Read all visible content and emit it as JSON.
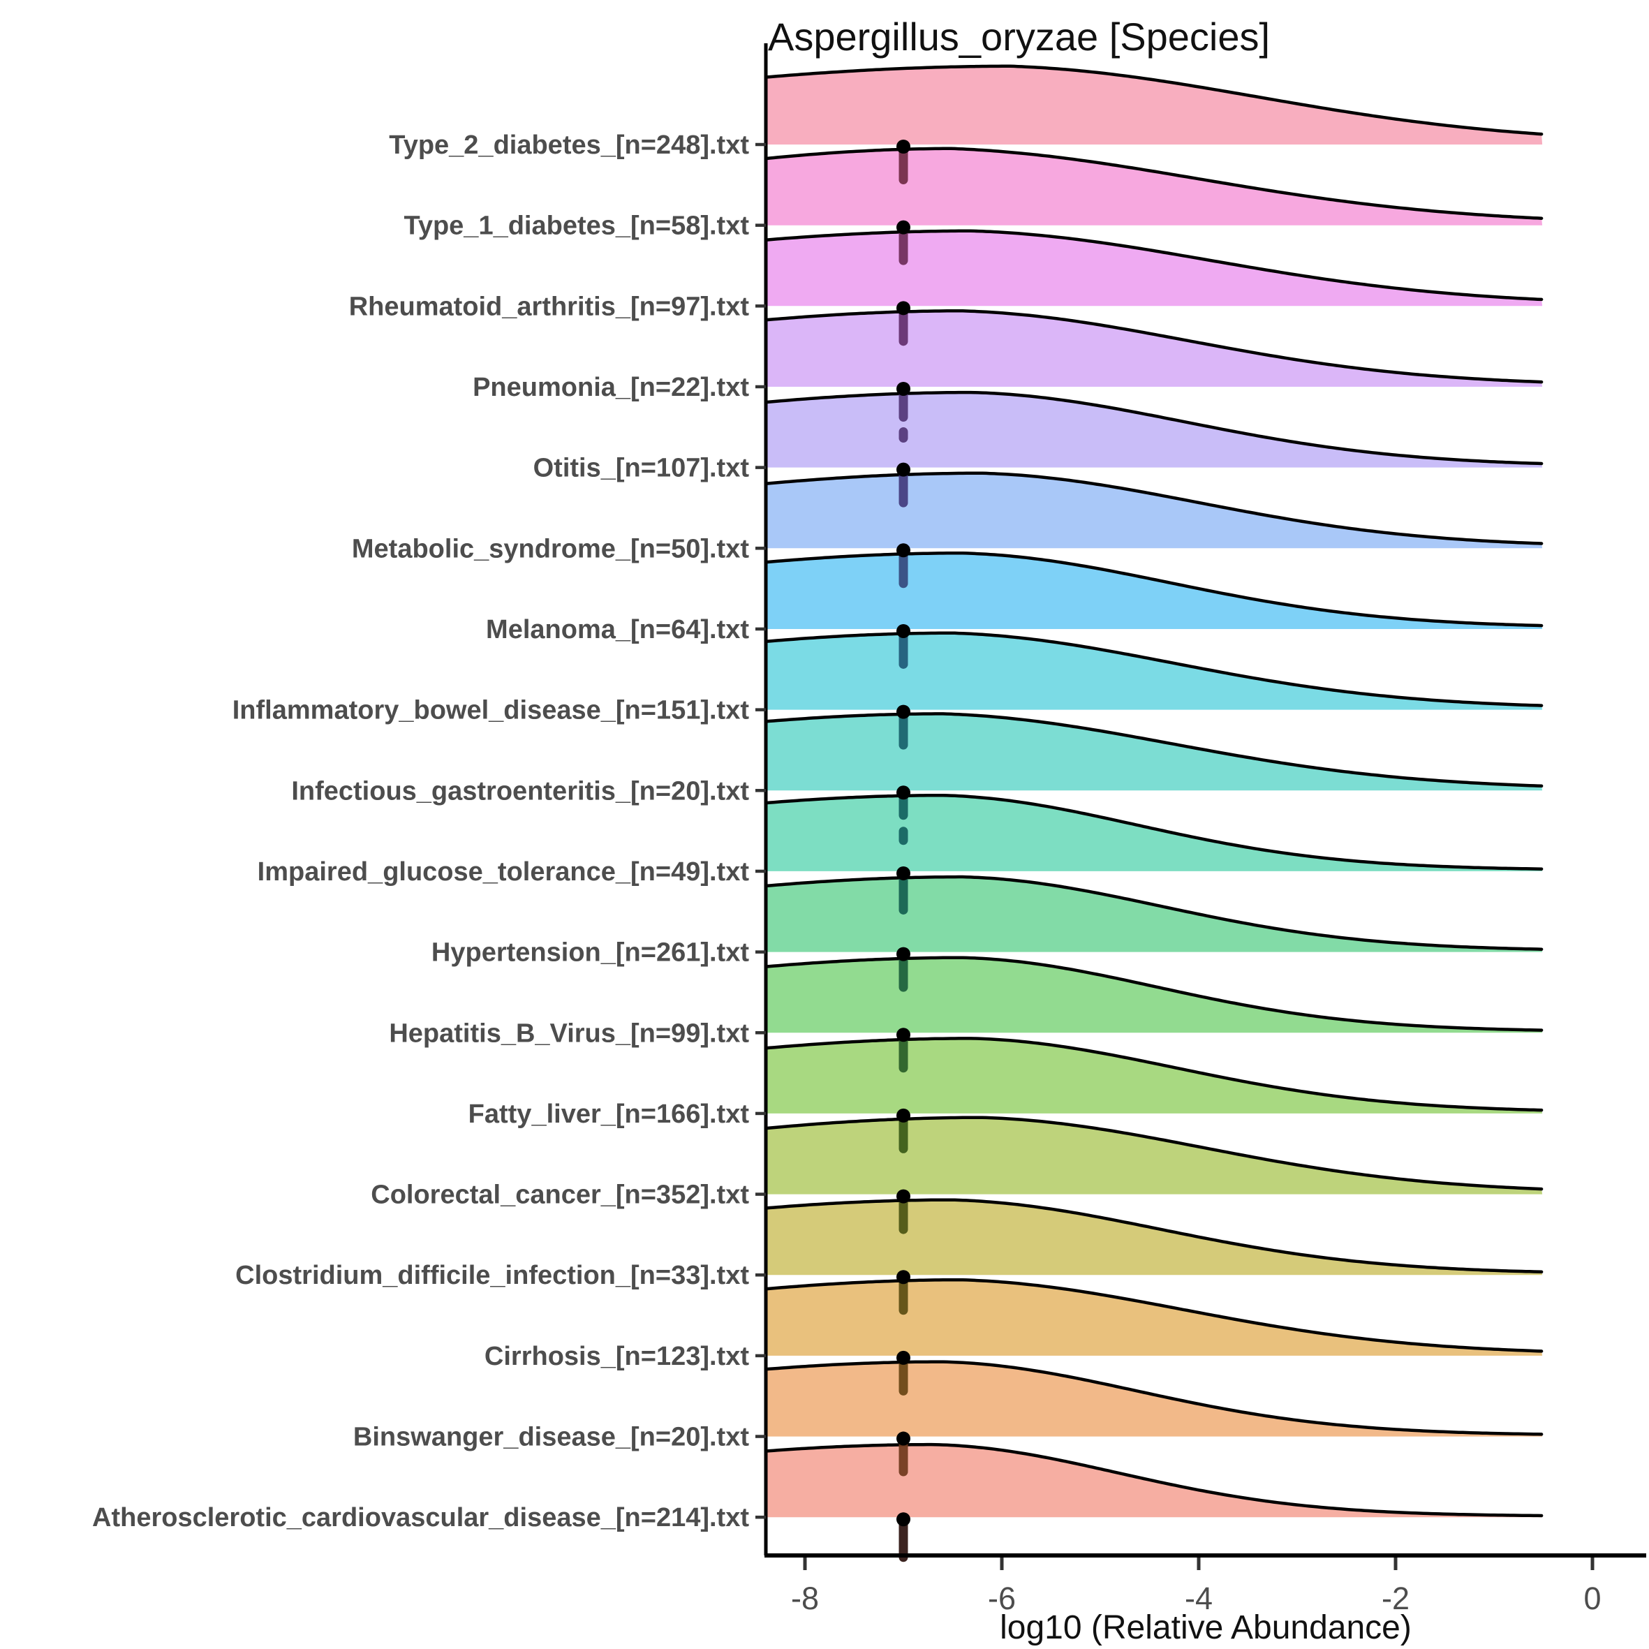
{
  "chart_data": {
    "type": "ridgeline-density",
    "title": "Aspergillus_oryzae [Species]",
    "xlabel": "log10 (Relative Abundance)",
    "x_tick_labels": [
      "-8",
      "-6",
      "-4",
      "-2",
      "0"
    ],
    "x_tick_values": [
      -8,
      -6,
      -4,
      -2,
      0
    ],
    "x_range": [
      -8.4,
      0.53
    ],
    "density_x_end": -0.51,
    "rug_mark_x": -7,
    "grid": "off",
    "legend": "none",
    "colors": {
      "axis_text": "#4d4d4d",
      "axis_line": "#000000",
      "tick_mark": "#333333",
      "outline": "#000000",
      "background": "#ffffff",
      "title": "#111111"
    },
    "series": [
      {
        "label": "Type_2_diabetes_[n=248].txt",
        "n": 248,
        "fill": "#F8AEBF",
        "rug": "#702B44",
        "density": {
          "peak_x": -5.9,
          "peak": 0.97,
          "left": 0.86,
          "spread_right": 2.6,
          "tail": 0.16
        },
        "rug_segs": [
          [
            0,
            57
          ]
        ]
      },
      {
        "label": "Type_1_diabetes_[n=58].txt",
        "n": 58,
        "fill": "#F7A8DF",
        "rug": "#6E2C59",
        "density": {
          "peak_x": -6.5,
          "peak": 0.95,
          "left": 0.87,
          "spread_right": 2.6,
          "tail": 0.18
        },
        "rug_segs": [
          [
            0,
            57
          ]
        ]
      },
      {
        "label": "Rheumatoid_arthritis_[n=97].txt",
        "n": 97,
        "fill": "#EFAAF2",
        "rug": "#632F6C",
        "density": {
          "peak_x": -6.3,
          "peak": 0.93,
          "left": 0.88,
          "spread_right": 2.5,
          "tail": 0.15
        },
        "rug_segs": [
          [
            0,
            57
          ]
        ]
      },
      {
        "label": "Pneumonia_[n=22].txt",
        "n": 22,
        "fill": "#DBB6F8",
        "rug": "#523677",
        "density": {
          "peak_x": -6.4,
          "peak": 0.94,
          "left": 0.88,
          "spread_right": 2.35,
          "tail": 0.14
        },
        "rug_segs": [
          [
            0,
            50
          ],
          [
            58,
            80
          ]
        ]
      },
      {
        "label": "Otitis_[n=107].txt",
        "n": 107,
        "fill": "#C9BDF8",
        "rug": "#433B7D",
        "density": {
          "peak_x": -6.3,
          "peak": 0.93,
          "left": 0.87,
          "spread_right": 2.2,
          "tail": 0.13
        },
        "rug_segs": [
          [
            0,
            57
          ]
        ]
      },
      {
        "label": "Metabolic_syndrome_[n=50].txt",
        "n": 50,
        "fill": "#A9C8F8",
        "rug": "#35497D",
        "density": {
          "peak_x": -6.2,
          "peak": 0.93,
          "left": 0.86,
          "spread_right": 2.25,
          "tail": 0.14
        },
        "rug_segs": [
          [
            0,
            57
          ]
        ]
      },
      {
        "label": "Melanoma_[n=64].txt",
        "n": 64,
        "fill": "#7ED1F7",
        "rug": "#1F5A78",
        "density": {
          "peak_x": -6.4,
          "peak": 0.94,
          "left": 0.88,
          "spread_right": 2.15,
          "tail": 0.13
        },
        "rug_segs": [
          [
            0,
            57
          ]
        ]
      },
      {
        "label": "Inflammatory_bowel_disease_[n=151].txt",
        "n": 151,
        "fill": "#7BDBE5",
        "rug": "#185F6B",
        "density": {
          "peak_x": -6.5,
          "peak": 0.95,
          "left": 0.89,
          "spread_right": 2.3,
          "tail": 0.14
        },
        "rug_segs": [
          [
            0,
            57
          ]
        ]
      },
      {
        "label": "Infectious_gastroenteritis_[n=20].txt",
        "n": 20,
        "fill": "#7CDDD3",
        "rug": "#14615F",
        "density": {
          "peak_x": -6.6,
          "peak": 0.95,
          "left": 0.9,
          "spread_right": 2.4,
          "tail": 0.14
        },
        "rug_segs": [
          [
            0,
            42
          ],
          [
            52,
            78
          ]
        ]
      },
      {
        "label": "Impaired_glucose_tolerance_[n=49].txt",
        "n": 49,
        "fill": "#7DDEC2",
        "rug": "#156150",
        "density": {
          "peak_x": -6.6,
          "peak": 0.94,
          "left": 0.9,
          "spread_right": 2.0,
          "tail": 0.12
        },
        "rug_segs": [
          [
            0,
            62
          ]
        ]
      },
      {
        "label": "Hypertension_[n=261].txt",
        "n": 261,
        "fill": "#82DBA7",
        "rug": "#1C603C",
        "density": {
          "peak_x": -6.4,
          "peak": 0.93,
          "left": 0.88,
          "spread_right": 2.05,
          "tail": 0.12
        },
        "rug_segs": [
          [
            0,
            57
          ]
        ]
      },
      {
        "label": "Hepatitis_B_Virus_[n=99].txt",
        "n": 99,
        "fill": "#92DB90",
        "rug": "#295E28",
        "density": {
          "peak_x": -6.4,
          "peak": 0.93,
          "left": 0.88,
          "spread_right": 2.0,
          "tail": 0.12
        },
        "rug_segs": [
          [
            0,
            57
          ]
        ]
      },
      {
        "label": "Fatty_liver_[n=166].txt",
        "n": 166,
        "fill": "#A8D981",
        "rug": "#3A5A17",
        "density": {
          "peak_x": -6.3,
          "peak": 0.93,
          "left": 0.87,
          "spread_right": 2.1,
          "tail": 0.13
        },
        "rug_segs": [
          [
            0,
            57
          ]
        ]
      },
      {
        "label": "Colorectal_cancer_[n=352].txt",
        "n": 352,
        "fill": "#BED37B",
        "rug": "#4B5513",
        "density": {
          "peak_x": -6.2,
          "peak": 0.95,
          "left": 0.86,
          "spread_right": 2.3,
          "tail": 0.14
        },
        "rug_segs": [
          [
            0,
            57
          ]
        ]
      },
      {
        "label": "Clostridium_difficile_infection_[n=33].txt",
        "n": 33,
        "fill": "#D5CB79",
        "rug": "#5A4D11",
        "density": {
          "peak_x": -6.5,
          "peak": 0.93,
          "left": 0.89,
          "spread_right": 2.15,
          "tail": 0.13
        },
        "rug_segs": [
          [
            0,
            57
          ]
        ]
      },
      {
        "label": "Cirrhosis_[n=123].txt",
        "n": 123,
        "fill": "#E9C17D",
        "rug": "#684413",
        "density": {
          "peak_x": -6.4,
          "peak": 0.94,
          "left": 0.88,
          "spread_right": 2.3,
          "tail": 0.15
        },
        "rug_segs": [
          [
            0,
            57
          ]
        ]
      },
      {
        "label": "Binswanger_disease_[n=20].txt",
        "n": 20,
        "fill": "#F2B989",
        "rug": "#6F381C",
        "density": {
          "peak_x": -6.6,
          "peak": 0.925,
          "left": 0.9,
          "spread_right": 2.0,
          "tail": 0.12
        },
        "rug_segs": [
          [
            0,
            57
          ]
        ]
      },
      {
        "label": "Atherosclerotic_cardiovascular_disease_[n=214].txt",
        "n": 214,
        "fill": "#F6AEA2",
        "rug": "#2A100D",
        "density": {
          "peak_x": -6.7,
          "peak": 0.9,
          "left": 0.91,
          "spread_right": 1.9,
          "tail": 0.1
        },
        "rug_segs": [
          [
            0,
            64
          ]
        ]
      }
    ]
  }
}
